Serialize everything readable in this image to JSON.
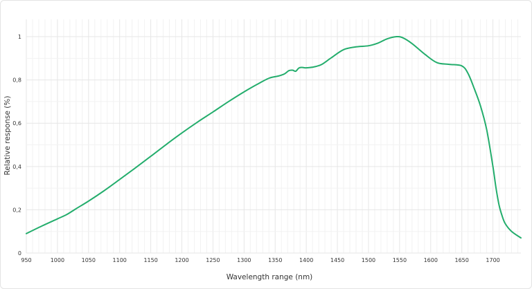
{
  "chart_data": {
    "type": "line",
    "title": "",
    "xlabel": "Wavelength range (nm)",
    "ylabel": "Relative response (%)",
    "xlim": [
      950,
      1745
    ],
    "ylim": [
      0,
      1.08
    ],
    "x_ticks": [
      950,
      1000,
      1050,
      1100,
      1150,
      1200,
      1250,
      1300,
      1350,
      1400,
      1450,
      1500,
      1550,
      1600,
      1650,
      1700
    ],
    "y_ticks": [
      0,
      0.2,
      0.4,
      0.6,
      0.8,
      1
    ],
    "y_tick_labels": [
      "0",
      "0,2",
      "0,4",
      "0,6",
      "0,8",
      "1"
    ],
    "grid": true,
    "line_color": "#23ad6c",
    "series": [
      {
        "x": [
          950,
          975,
          1000,
          1015,
          1030,
          1050,
          1075,
          1100,
          1125,
          1150,
          1175,
          1200,
          1225,
          1250,
          1275,
          1300,
          1320,
          1340,
          1355,
          1365,
          1372,
          1378,
          1383,
          1388,
          1393,
          1398,
          1405,
          1415,
          1425,
          1440,
          1460,
          1480,
          1500,
          1515,
          1530,
          1545,
          1555,
          1570,
          1590,
          1610,
          1630,
          1650,
          1660,
          1670,
          1680,
          1690,
          1700,
          1705,
          1710,
          1715,
          1720,
          1730,
          1745
        ],
        "y": [
          0.09,
          0.125,
          0.158,
          0.178,
          0.205,
          0.24,
          0.288,
          0.34,
          0.393,
          0.447,
          0.502,
          0.555,
          0.605,
          0.652,
          0.7,
          0.745,
          0.778,
          0.808,
          0.818,
          0.828,
          0.843,
          0.845,
          0.84,
          0.855,
          0.858,
          0.856,
          0.857,
          0.862,
          0.872,
          0.902,
          0.94,
          0.953,
          0.958,
          0.97,
          0.99,
          1.0,
          0.995,
          0.968,
          0.92,
          0.88,
          0.872,
          0.865,
          0.83,
          0.76,
          0.68,
          0.57,
          0.4,
          0.3,
          0.22,
          0.17,
          0.135,
          0.1,
          0.07
        ]
      }
    ]
  }
}
